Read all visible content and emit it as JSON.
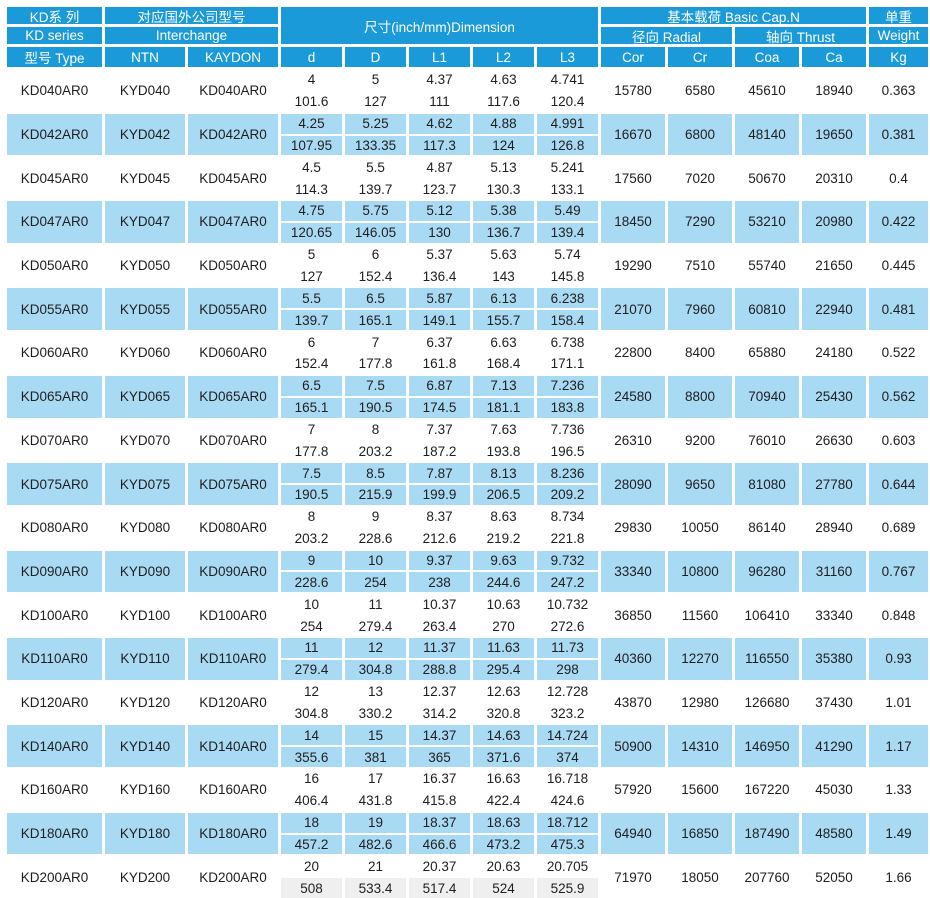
{
  "colors": {
    "header_blue": "#1a9ad8",
    "row_blue": "#a9daf4",
    "row_gray": "#efefef"
  },
  "header": {
    "kd": {
      "cn": "KD系 列",
      "en": "KD series",
      "type": "型号 Type"
    },
    "interchange": {
      "cn": "对应国外公司型号",
      "en": "Interchange",
      "ntn": "NTN",
      "kaydon": "KAYDON"
    },
    "dimension": {
      "title": "尺寸(inch/mm)Dimension",
      "cols": [
        "d",
        "D",
        "L1",
        "L2",
        "L3"
      ]
    },
    "capacity": {
      "title": "基本载荷 Basic Cap.N",
      "radial": "径向 Radial",
      "thrust": "轴向 Thrust",
      "cols": [
        "Cor",
        "Cr",
        "Coa",
        "Ca"
      ]
    },
    "weight": {
      "cn": "单重",
      "en": "Weight",
      "unit": "Kg"
    }
  },
  "rows": [
    {
      "type": "KD040AR0",
      "ntn": "KYD040",
      "kaydon": "KD040AR0",
      "d": [
        "4",
        "101.6"
      ],
      "D": [
        "5",
        "127"
      ],
      "L1": [
        "4.37",
        "111"
      ],
      "L2": [
        "4.63",
        "117.6"
      ],
      "L3": [
        "4.741",
        "120.4"
      ],
      "cor": "15780",
      "cr": "6580",
      "coa": "45610",
      "ca": "18940",
      "kg": "0.363"
    },
    {
      "type": "KD042AR0",
      "ntn": "KYD042",
      "kaydon": "KD042AR0",
      "d": [
        "4.25",
        "107.95"
      ],
      "D": [
        "5.25",
        "133.35"
      ],
      "L1": [
        "4.62",
        "117.3"
      ],
      "L2": [
        "4.88",
        "124"
      ],
      "L3": [
        "4.991",
        "126.8"
      ],
      "cor": "16670",
      "cr": "6800",
      "coa": "48140",
      "ca": "19650",
      "kg": "0.381"
    },
    {
      "type": "KD045AR0",
      "ntn": "KYD045",
      "kaydon": "KD045AR0",
      "d": [
        "4.5",
        "114.3"
      ],
      "D": [
        "5.5",
        "139.7"
      ],
      "L1": [
        "4.87",
        "123.7"
      ],
      "L2": [
        "5.13",
        "130.3"
      ],
      "L3": [
        "5.241",
        "133.1"
      ],
      "cor": "17560",
      "cr": "7020",
      "coa": "50670",
      "ca": "20310",
      "kg": "0.4"
    },
    {
      "type": "KD047AR0",
      "ntn": "KYD047",
      "kaydon": "KD047AR0",
      "d": [
        "4.75",
        "120.65"
      ],
      "D": [
        "5.75",
        "146.05"
      ],
      "L1": [
        "5.12",
        "130"
      ],
      "L2": [
        "5.38",
        "136.7"
      ],
      "L3": [
        "5.49",
        "139.4"
      ],
      "cor": "18450",
      "cr": "7290",
      "coa": "53210",
      "ca": "20980",
      "kg": "0.422"
    },
    {
      "type": "KD050AR0",
      "ntn": "KYD050",
      "kaydon": "KD050AR0",
      "d": [
        "5",
        "127"
      ],
      "D": [
        "6",
        "152.4"
      ],
      "L1": [
        "5.37",
        "136.4"
      ],
      "L2": [
        "5.63",
        "143"
      ],
      "L3": [
        "5.74",
        "145.8"
      ],
      "cor": "19290",
      "cr": "7510",
      "coa": "55740",
      "ca": "21650",
      "kg": "0.445"
    },
    {
      "type": "KD055AR0",
      "ntn": "KYD055",
      "kaydon": "KD055AR0",
      "d": [
        "5.5",
        "139.7"
      ],
      "D": [
        "6.5",
        "165.1"
      ],
      "L1": [
        "5.87",
        "149.1"
      ],
      "L2": [
        "6.13",
        "155.7"
      ],
      "L3": [
        "6.238",
        "158.4"
      ],
      "cor": "21070",
      "cr": "7960",
      "coa": "60810",
      "ca": "22940",
      "kg": "0.481"
    },
    {
      "type": "KD060AR0",
      "ntn": "KYD060",
      "kaydon": "KD060AR0",
      "d": [
        "6",
        "152.4"
      ],
      "D": [
        "7",
        "177.8"
      ],
      "L1": [
        "6.37",
        "161.8"
      ],
      "L2": [
        "6.63",
        "168.4"
      ],
      "L3": [
        "6.738",
        "171.1"
      ],
      "cor": "22800",
      "cr": "8400",
      "coa": "65880",
      "ca": "24180",
      "kg": "0.522"
    },
    {
      "type": "KD065AR0",
      "ntn": "KYD065",
      "kaydon": "KD065AR0",
      "d": [
        "6.5",
        "165.1"
      ],
      "D": [
        "7.5",
        "190.5"
      ],
      "L1": [
        "6.87",
        "174.5"
      ],
      "L2": [
        "7.13",
        "181.1"
      ],
      "L3": [
        "7.236",
        "183.8"
      ],
      "cor": "24580",
      "cr": "8800",
      "coa": "70940",
      "ca": "25430",
      "kg": "0.562"
    },
    {
      "type": "KD070AR0",
      "ntn": "KYD070",
      "kaydon": "KD070AR0",
      "d": [
        "7",
        "177.8"
      ],
      "D": [
        "8",
        "203.2"
      ],
      "L1": [
        "7.37",
        "187.2"
      ],
      "L2": [
        "7.63",
        "193.8"
      ],
      "L3": [
        "7.736",
        "196.5"
      ],
      "cor": "26310",
      "cr": "9200",
      "coa": "76010",
      "ca": "26630",
      "kg": "0.603"
    },
    {
      "type": "KD075AR0",
      "ntn": "KYD075",
      "kaydon": "KD075AR0",
      "d": [
        "7.5",
        "190.5"
      ],
      "D": [
        "8.5",
        "215.9"
      ],
      "L1": [
        "7.87",
        "199.9"
      ],
      "L2": [
        "8.13",
        "206.5"
      ],
      "L3": [
        "8.236",
        "209.2"
      ],
      "cor": "28090",
      "cr": "9650",
      "coa": "81080",
      "ca": "27780",
      "kg": "0.644"
    },
    {
      "type": "KD080AR0",
      "ntn": "KYD080",
      "kaydon": "KD080AR0",
      "d": [
        "8",
        "203.2"
      ],
      "D": [
        "9",
        "228.6"
      ],
      "L1": [
        "8.37",
        "212.6"
      ],
      "L2": [
        "8.63",
        "219.2"
      ],
      "L3": [
        "8.734",
        "221.8"
      ],
      "cor": "29830",
      "cr": "10050",
      "coa": "86140",
      "ca": "28940",
      "kg": "0.689"
    },
    {
      "type": "KD090AR0",
      "ntn": "KYD090",
      "kaydon": "KD090AR0",
      "d": [
        "9",
        "228.6"
      ],
      "D": [
        "10",
        "254"
      ],
      "L1": [
        "9.37",
        "238"
      ],
      "L2": [
        "9.63",
        "244.6"
      ],
      "L3": [
        "9.732",
        "247.2"
      ],
      "cor": "33340",
      "cr": "10800",
      "coa": "96280",
      "ca": "31160",
      "kg": "0.767"
    },
    {
      "type": "KD100AR0",
      "ntn": "KYD100",
      "kaydon": "KD100AR0",
      "d": [
        "10",
        "254"
      ],
      "D": [
        "11",
        "279.4"
      ],
      "L1": [
        "10.37",
        "263.4"
      ],
      "L2": [
        "10.63",
        "270"
      ],
      "L3": [
        "10.732",
        "272.6"
      ],
      "cor": "36850",
      "cr": "11560",
      "coa": "106410",
      "ca": "33340",
      "kg": "0.848"
    },
    {
      "type": "KD110AR0",
      "ntn": "KYD110",
      "kaydon": "KD110AR0",
      "d": [
        "11",
        "279.4"
      ],
      "D": [
        "12",
        "304.8"
      ],
      "L1": [
        "11.37",
        "288.8"
      ],
      "L2": [
        "11.63",
        "295.4"
      ],
      "L3": [
        "11.73",
        "298"
      ],
      "cor": "40360",
      "cr": "12270",
      "coa": "116550",
      "ca": "35380",
      "kg": "0.93"
    },
    {
      "type": "KD120AR0",
      "ntn": "KYD120",
      "kaydon": "KD120AR0",
      "d": [
        "12",
        "304.8"
      ],
      "D": [
        "13",
        "330.2"
      ],
      "L1": [
        "12.37",
        "314.2"
      ],
      "L2": [
        "12.63",
        "320.8"
      ],
      "L3": [
        "12.728",
        "323.2"
      ],
      "cor": "43870",
      "cr": "12980",
      "coa": "126680",
      "ca": "37430",
      "kg": "1.01"
    },
    {
      "type": "KD140AR0",
      "ntn": "KYD140",
      "kaydon": "KD140AR0",
      "d": [
        "14",
        "355.6"
      ],
      "D": [
        "15",
        "381"
      ],
      "L1": [
        "14.37",
        "365"
      ],
      "L2": [
        "14.63",
        "371.6"
      ],
      "L3": [
        "14.724",
        "374"
      ],
      "cor": "50900",
      "cr": "14310",
      "coa": "146950",
      "ca": "41290",
      "kg": "1.17"
    },
    {
      "type": "KD160AR0",
      "ntn": "KYD160",
      "kaydon": "KD160AR0",
      "d": [
        "16",
        "406.4"
      ],
      "D": [
        "17",
        "431.8"
      ],
      "L1": [
        "16.37",
        "415.8"
      ],
      "L2": [
        "16.63",
        "422.4"
      ],
      "L3": [
        "16.718",
        "424.6"
      ],
      "cor": "57920",
      "cr": "15600",
      "coa": "167220",
      "ca": "45030",
      "kg": "1.33"
    },
    {
      "type": "KD180AR0",
      "ntn": "KYD180",
      "kaydon": "KD180AR0",
      "d": [
        "18",
        "457.2"
      ],
      "D": [
        "19",
        "482.6"
      ],
      "L1": [
        "18.37",
        "466.6"
      ],
      "L2": [
        "18.63",
        "473.2"
      ],
      "L3": [
        "18.712",
        "475.3"
      ],
      "cor": "64940",
      "cr": "16850",
      "coa": "187490",
      "ca": "48580",
      "kg": "1.49"
    },
    {
      "type": "KD200AR0",
      "ntn": "KYD200",
      "kaydon": "KD200AR0",
      "d": [
        "20",
        "508"
      ],
      "D": [
        "21",
        "533.4"
      ],
      "L1": [
        "20.37",
        "517.4"
      ],
      "L2": [
        "20.63",
        "524"
      ],
      "L3": [
        "20.705",
        "525.9"
      ],
      "cor": "71970",
      "cr": "18050",
      "coa": "207760",
      "ca": "52050",
      "kg": "1.66"
    }
  ]
}
